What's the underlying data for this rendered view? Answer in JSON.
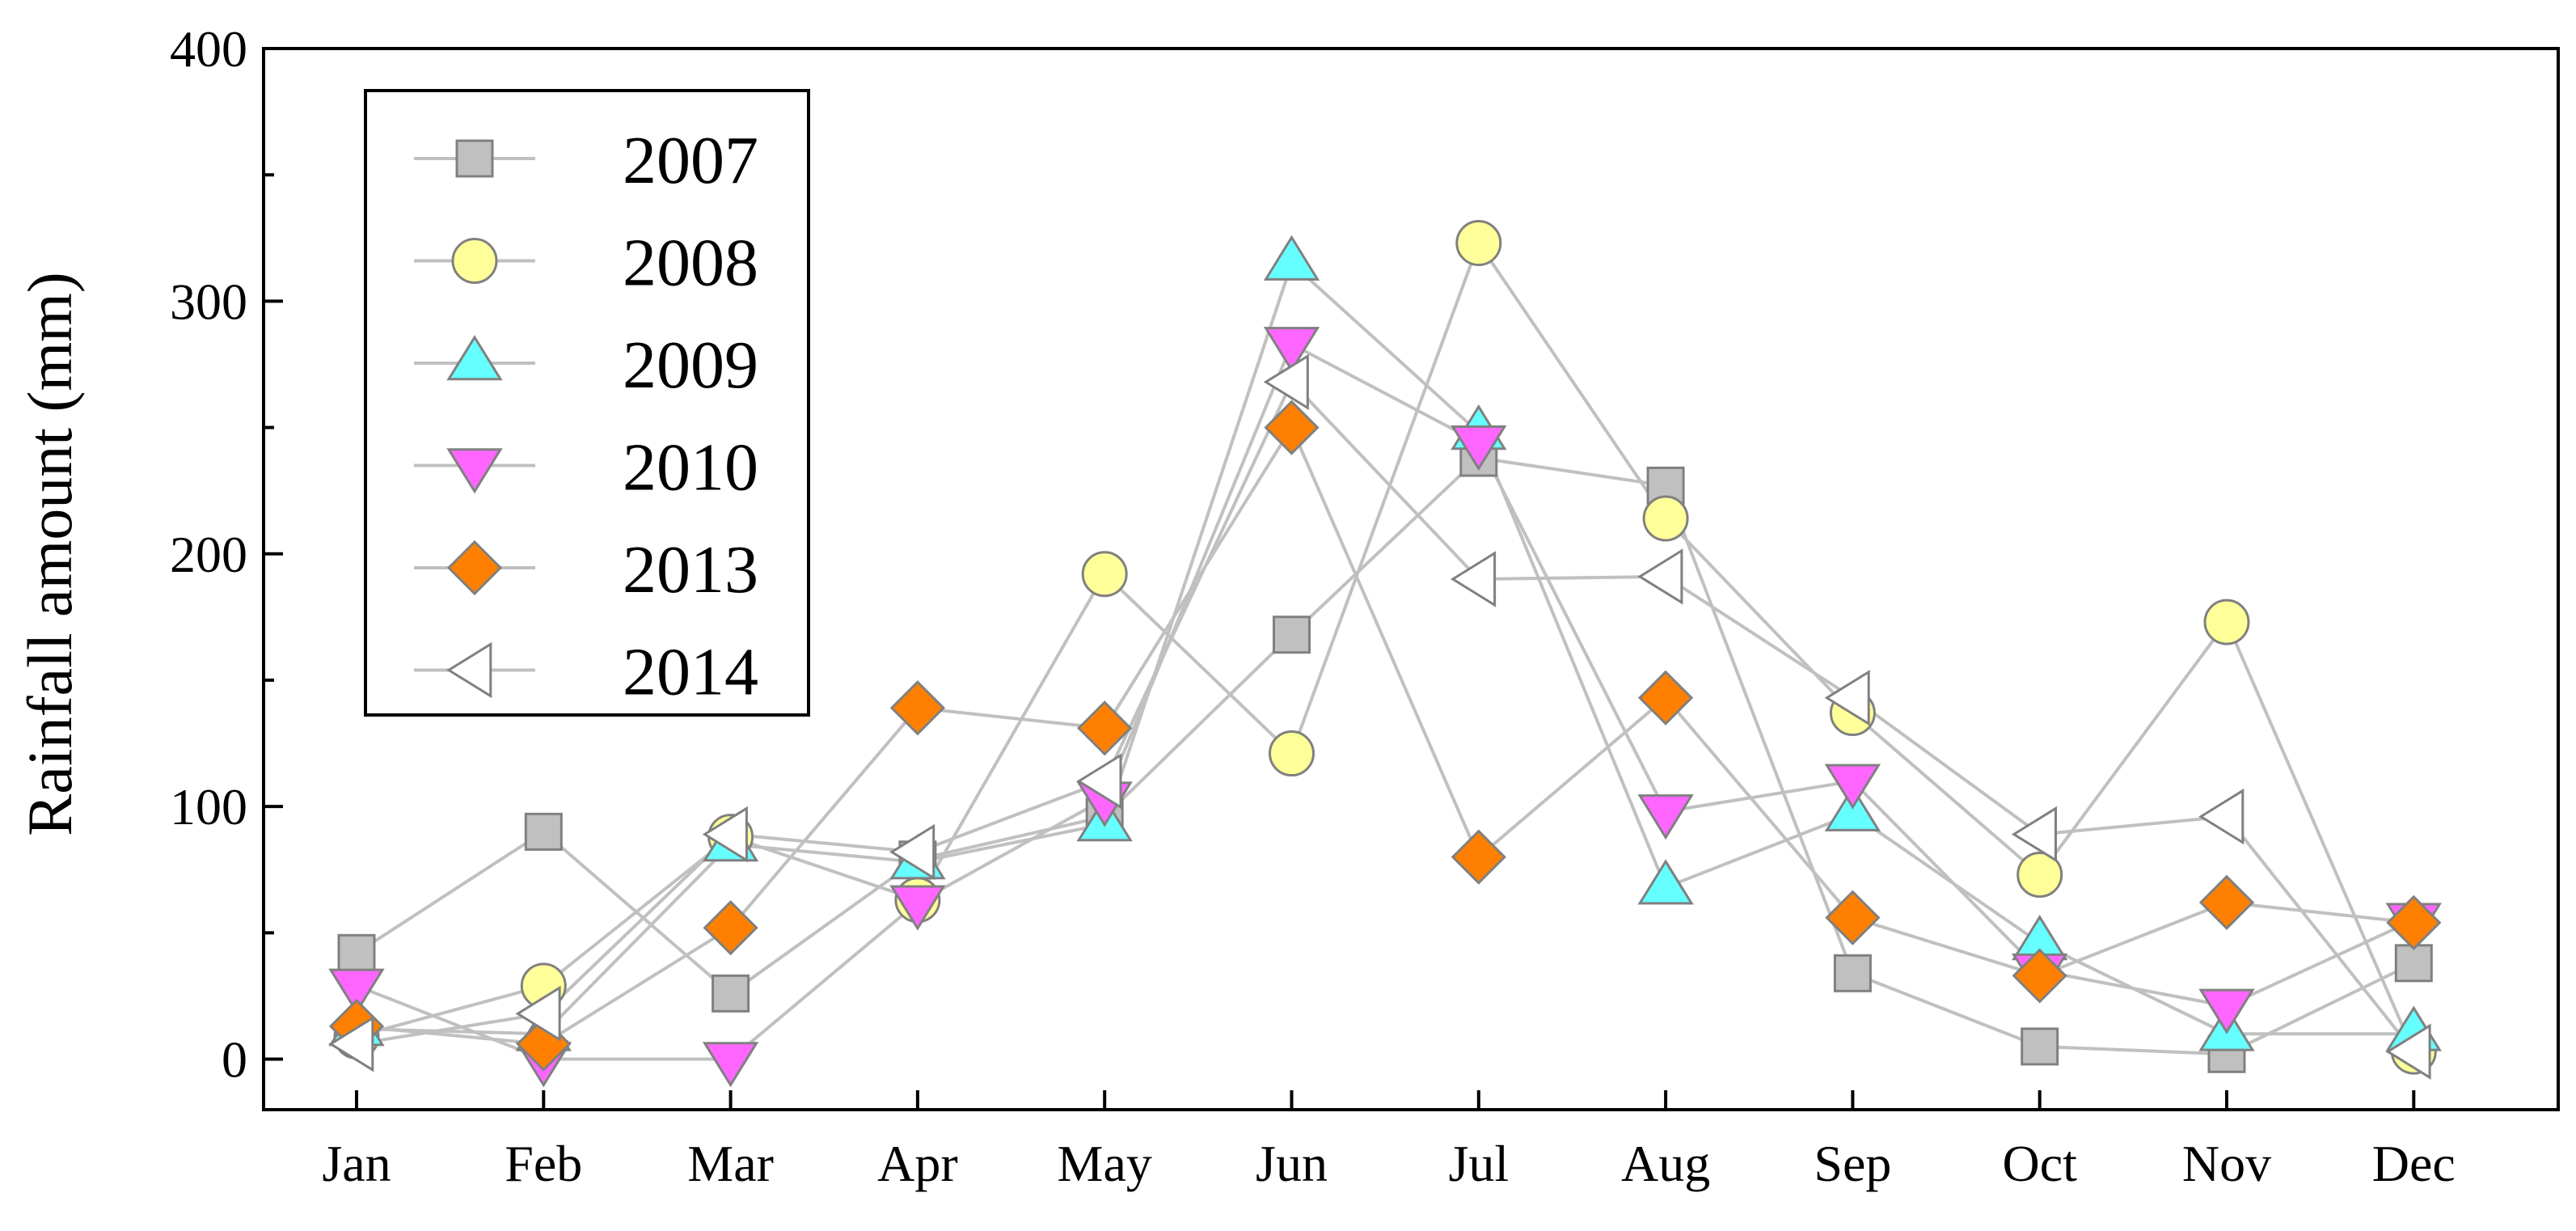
{
  "chart_data": {
    "type": "line",
    "title": "",
    "xlabel": "",
    "ylabel": "Rainfall amount (mm)",
    "categories": [
      "Jan",
      "Feb",
      "Mar",
      "Apr",
      "May",
      "Jun",
      "Jul",
      "Aug",
      "Sep",
      "Oct",
      "Nov",
      "Dec"
    ],
    "ylim": [
      -20,
      400
    ],
    "yticks": [
      0,
      100,
      200,
      300,
      400
    ],
    "ytick_labels": [
      "0",
      "100",
      "200",
      "300",
      "400"
    ],
    "grid": false,
    "legend_position": "top-left",
    "line_color": "#c0c0c0",
    "series": [
      {
        "name": "2007",
        "marker": "square",
        "fill": "#c0c0c0",
        "stroke": "#808080",
        "values": [
          42,
          90,
          26,
          79,
          96,
          168,
          238,
          227,
          34,
          5,
          2,
          38
        ]
      },
      {
        "name": "2008",
        "marker": "circle",
        "fill": "#ffff99",
        "stroke": "#808080",
        "values": [
          9,
          29,
          88,
          63,
          192,
          121,
          323,
          214,
          137,
          73,
          173,
          3
        ]
      },
      {
        "name": "2009",
        "marker": "triangle-up",
        "fill": "#66ffff",
        "stroke": "#808080",
        "values": [
          12,
          10,
          85,
          78,
          93,
          315,
          248,
          68,
          97,
          46,
          10,
          10
        ]
      },
      {
        "name": "2010",
        "marker": "triangle-down",
        "fill": "#ff66ff",
        "stroke": "#808080",
        "values": [
          29,
          0,
          0,
          62,
          103,
          283,
          244,
          98,
          110,
          35,
          21,
          55
        ]
      },
      {
        "name": "2013",
        "marker": "diamond",
        "fill": "#ff8000",
        "stroke": "#808080",
        "values": [
          13,
          6,
          52,
          139,
          131,
          250,
          80,
          143,
          56,
          33,
          62,
          54
        ]
      },
      {
        "name": "2014",
        "marker": "triangle-left",
        "fill": "#ffffff",
        "stroke": "#808080",
        "values": [
          6,
          18,
          89,
          82,
          110,
          268,
          190,
          191,
          143,
          89,
          96,
          3
        ]
      }
    ]
  }
}
